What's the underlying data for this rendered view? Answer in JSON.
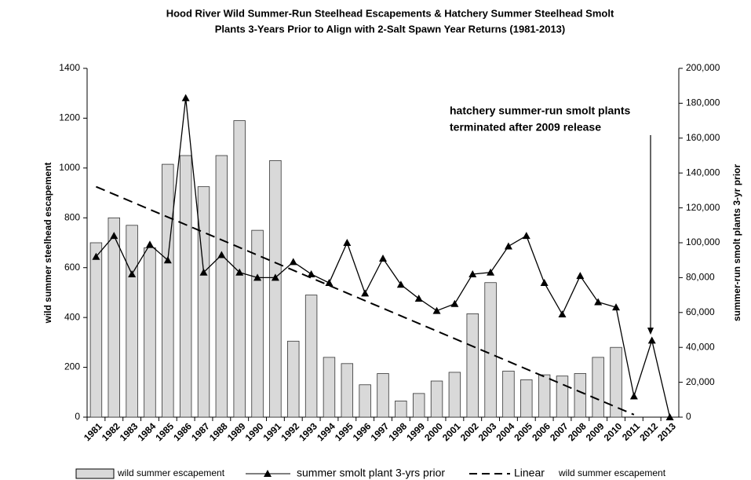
{
  "chart_data": {
    "type": "bar",
    "title": [
      "Hood River Wild Summer-Run Steelhead Escapements & Hatchery Summer Steelhead Smolt",
      "Plants 3-Years Prior to Align with 2-Salt Spawn Year Returns (1981-2013)"
    ],
    "y_label": "wild summer steelhead escapement",
    "y2_label": "summer-run smolt plants 3-yr prior",
    "categories": [
      "1981",
      "1982",
      "1983",
      "1984",
      "1985",
      "1986",
      "1987",
      "1988",
      "1989",
      "1990",
      "1991",
      "1992",
      "1993",
      "1994",
      "1995",
      "1996",
      "1997",
      "1998",
      "1999",
      "2000",
      "2001",
      "2002",
      "2003",
      "2004",
      "2005",
      "2006",
      "2007",
      "2008",
      "2009",
      "2010",
      "2011",
      "2012",
      "2013"
    ],
    "series": [
      {
        "name": "wild summer escapement",
        "type": "bar",
        "color": "#d9d9d9",
        "axis": "y",
        "values": [
          700,
          800,
          770,
          680,
          1015,
          1050,
          925,
          1050,
          1190,
          750,
          1030,
          305,
          490,
          240,
          215,
          130,
          175,
          65,
          95,
          145,
          180,
          415,
          540,
          185,
          150,
          170,
          165,
          175,
          240,
          280,
          null,
          null,
          null
        ]
      },
      {
        "name": "summer smolt plant 3-yrs prior",
        "type": "line",
        "color": "#000000",
        "axis": "y2",
        "values": [
          92000,
          104000,
          82000,
          99000,
          90000,
          183000,
          83000,
          93000,
          83000,
          80000,
          80000,
          89000,
          82000,
          77000,
          100000,
          71000,
          91000,
          76000,
          68000,
          61000,
          65000,
          82000,
          83000,
          98000,
          104000,
          77000,
          59000,
          81000,
          66000,
          63000,
          12000,
          44000,
          0
        ]
      }
    ],
    "trend": {
      "name": "Linear",
      "label": "wild summer escapement",
      "color": "#000000",
      "categories": [
        "1981",
        "2011"
      ],
      "values": [
        925,
        10
      ]
    },
    "annotation": [
      "hatchery summer-run smolt plants",
      "terminated after 2009 release"
    ],
    "ylim": [
      0,
      1400
    ],
    "yticks": [
      0,
      200,
      400,
      600,
      800,
      1000,
      1200,
      1400
    ],
    "y2lim": [
      0,
      200000
    ],
    "y2ticks": [
      0,
      {
        "value": 20000,
        "label": "20,000"
      },
      {
        "value": 40000,
        "label": "40,000"
      },
      {
        "value": 60000,
        "label": "60,000"
      },
      {
        "value": 80000,
        "label": "80,000"
      },
      {
        "value": 100000,
        "label": "100,000"
      },
      {
        "value": 120000,
        "label": "120,000"
      },
      {
        "value": 140000,
        "label": "140,000"
      },
      {
        "value": 160000,
        "label": "160,000"
      },
      {
        "value": 180000,
        "label": "180,000"
      },
      {
        "value": 200000,
        "label": "200,000"
      }
    ],
    "grid": false
  }
}
